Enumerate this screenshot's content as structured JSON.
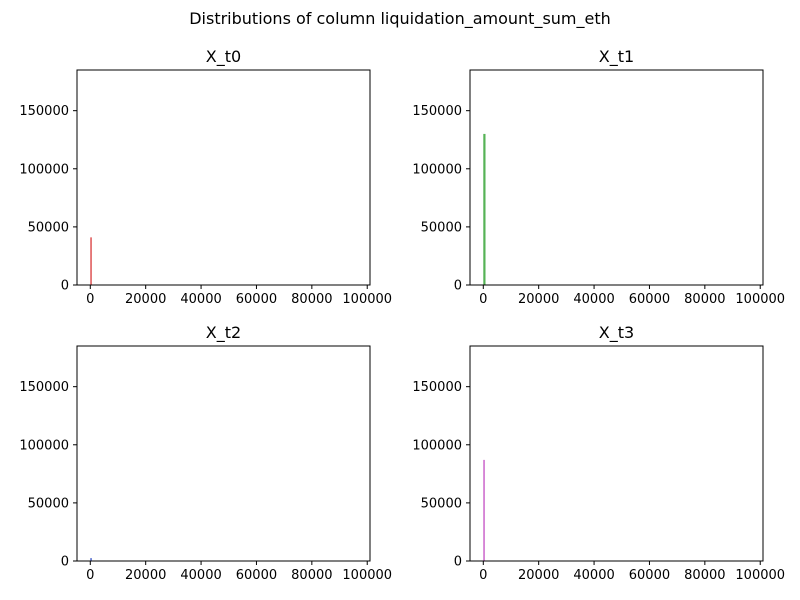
{
  "figure": {
    "title": "Distributions of column liquidation_amount_sum_eth"
  },
  "chart_data": [
    {
      "type": "bar",
      "title": "X_t0",
      "xlabel": "",
      "ylabel": "",
      "xlim": [
        -4800,
        101000
      ],
      "ylim": [
        0,
        185000
      ],
      "x_ticks": [
        0,
        20000,
        40000,
        60000,
        80000,
        100000
      ],
      "y_ticks": [
        0,
        50000,
        100000,
        150000
      ],
      "x_tick_labels": [
        "0",
        "20000",
        "40000",
        "60000",
        "80000",
        "100000"
      ],
      "y_tick_labels": [
        "0",
        "50000",
        "100000",
        "150000"
      ],
      "color": "#d62728",
      "bins": [
        {
          "x0": 0,
          "x1": 500,
          "count": 41000
        }
      ],
      "grid": false
    },
    {
      "type": "bar",
      "title": "X_t1",
      "xlabel": "",
      "ylabel": "",
      "xlim": [
        -4800,
        101000
      ],
      "ylim": [
        0,
        185000
      ],
      "x_ticks": [
        0,
        20000,
        40000,
        60000,
        80000,
        100000
      ],
      "y_ticks": [
        0,
        50000,
        100000,
        150000
      ],
      "x_tick_labels": [
        "0",
        "20000",
        "40000",
        "60000",
        "80000",
        "100000"
      ],
      "y_tick_labels": [
        "0",
        "50000",
        "100000",
        "150000"
      ],
      "color": "#2ca02c",
      "bins": [
        {
          "x0": 0,
          "x1": 800,
          "count": 130000
        }
      ],
      "grid": false
    },
    {
      "type": "bar",
      "title": "X_t2",
      "xlabel": "",
      "ylabel": "",
      "xlim": [
        -4800,
        101000
      ],
      "ylim": [
        0,
        185000
      ],
      "x_ticks": [
        0,
        20000,
        40000,
        60000,
        80000,
        100000
      ],
      "y_ticks": [
        0,
        50000,
        100000,
        150000
      ],
      "x_tick_labels": [
        "0",
        "20000",
        "40000",
        "60000",
        "80000",
        "100000"
      ],
      "y_tick_labels": [
        "0",
        "50000",
        "100000",
        "150000"
      ],
      "color": "#1f3fbf",
      "bins": [
        {
          "x0": 0,
          "x1": 500,
          "count": 2500
        }
      ],
      "grid": false
    },
    {
      "type": "bar",
      "title": "X_t3",
      "xlabel": "",
      "ylabel": "",
      "xlim": [
        -4800,
        101000
      ],
      "ylim": [
        0,
        185000
      ],
      "x_ticks": [
        0,
        20000,
        40000,
        60000,
        80000,
        100000
      ],
      "y_ticks": [
        0,
        50000,
        100000,
        150000
      ],
      "x_tick_labels": [
        "0",
        "20000",
        "40000",
        "60000",
        "80000",
        "100000"
      ],
      "y_tick_labels": [
        "0",
        "50000",
        "100000",
        "150000"
      ],
      "color": "#bf3fbf",
      "bins": [
        {
          "x0": 0,
          "x1": 500,
          "count": 87000
        }
      ],
      "grid": false
    }
  ]
}
